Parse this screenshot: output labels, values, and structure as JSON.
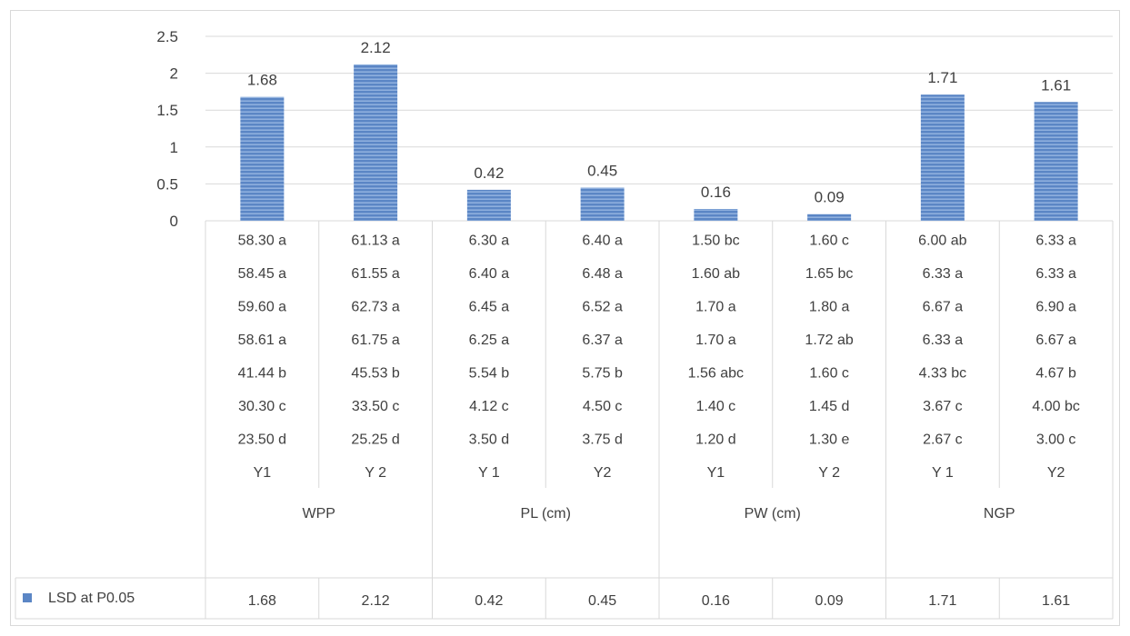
{
  "chart_data": {
    "type": "bar",
    "ylim": [
      0,
      2.5
    ],
    "y_ticks": [
      "0",
      "0.5",
      "1",
      "1.5",
      "2",
      "2.5"
    ],
    "y_tick_values": [
      0,
      0.5,
      1,
      1.5,
      2,
      2.5
    ],
    "grid": true,
    "bar_color": "#5b86c5",
    "categories": [
      "Y1",
      "Y 2",
      "Y 1",
      "Y2",
      "Y1",
      "Y 2",
      "Y 1",
      "Y2"
    ],
    "groups": [
      "WPP",
      "PL (cm)",
      "PW (cm)",
      "NGP"
    ],
    "series": [
      {
        "name": "LSD at P0.05",
        "values": [
          1.68,
          2.12,
          0.42,
          0.45,
          0.16,
          0.09,
          1.71,
          1.61
        ],
        "labels": [
          "1.68",
          "2.12",
          "0.42",
          "0.45",
          "0.16",
          "0.09",
          "1.71",
          "1.61"
        ]
      }
    ],
    "table_rows": [
      [
        "58.30 a",
        "61.13 a",
        "6.30 a",
        "6.40 a",
        "1.50 bc",
        "1.60 c",
        "6.00 ab",
        "6.33 a"
      ],
      [
        "58.45 a",
        "61.55 a",
        "6.40 a",
        "6.48 a",
        "1.60 ab",
        "1.65 bc",
        "6.33 a",
        "6.33 a"
      ],
      [
        "59.60 a",
        "62.73 a",
        "6.45 a",
        "6.52 a",
        "1.70 a",
        "1.80 a",
        "6.67 a",
        "6.90 a"
      ],
      [
        "58.61 a",
        "61.75 a",
        "6.25 a",
        "6.37 a",
        "1.70 a",
        "1.72 ab",
        "6.33 a",
        "6.67 a"
      ],
      [
        "41.44 b",
        "45.53 b",
        "5.54 b",
        "5.75 b",
        "1.56 abc",
        "1.60 c",
        "4.33 bc",
        "4.67 b"
      ],
      [
        "30.30 c",
        "33.50 c",
        "4.12 c",
        "4.50 c",
        "1.40 c",
        "1.45 d",
        "3.67 c",
        "4.00 bc"
      ],
      [
        "23.50 d",
        "25.25 d",
        "3.50 d",
        "3.75 d",
        "1.20 d",
        "1.30 e",
        "2.67 c",
        "3.00 c"
      ]
    ],
    "legend": {
      "placement": "bottom-left",
      "label": "LSD at P0.05"
    }
  }
}
